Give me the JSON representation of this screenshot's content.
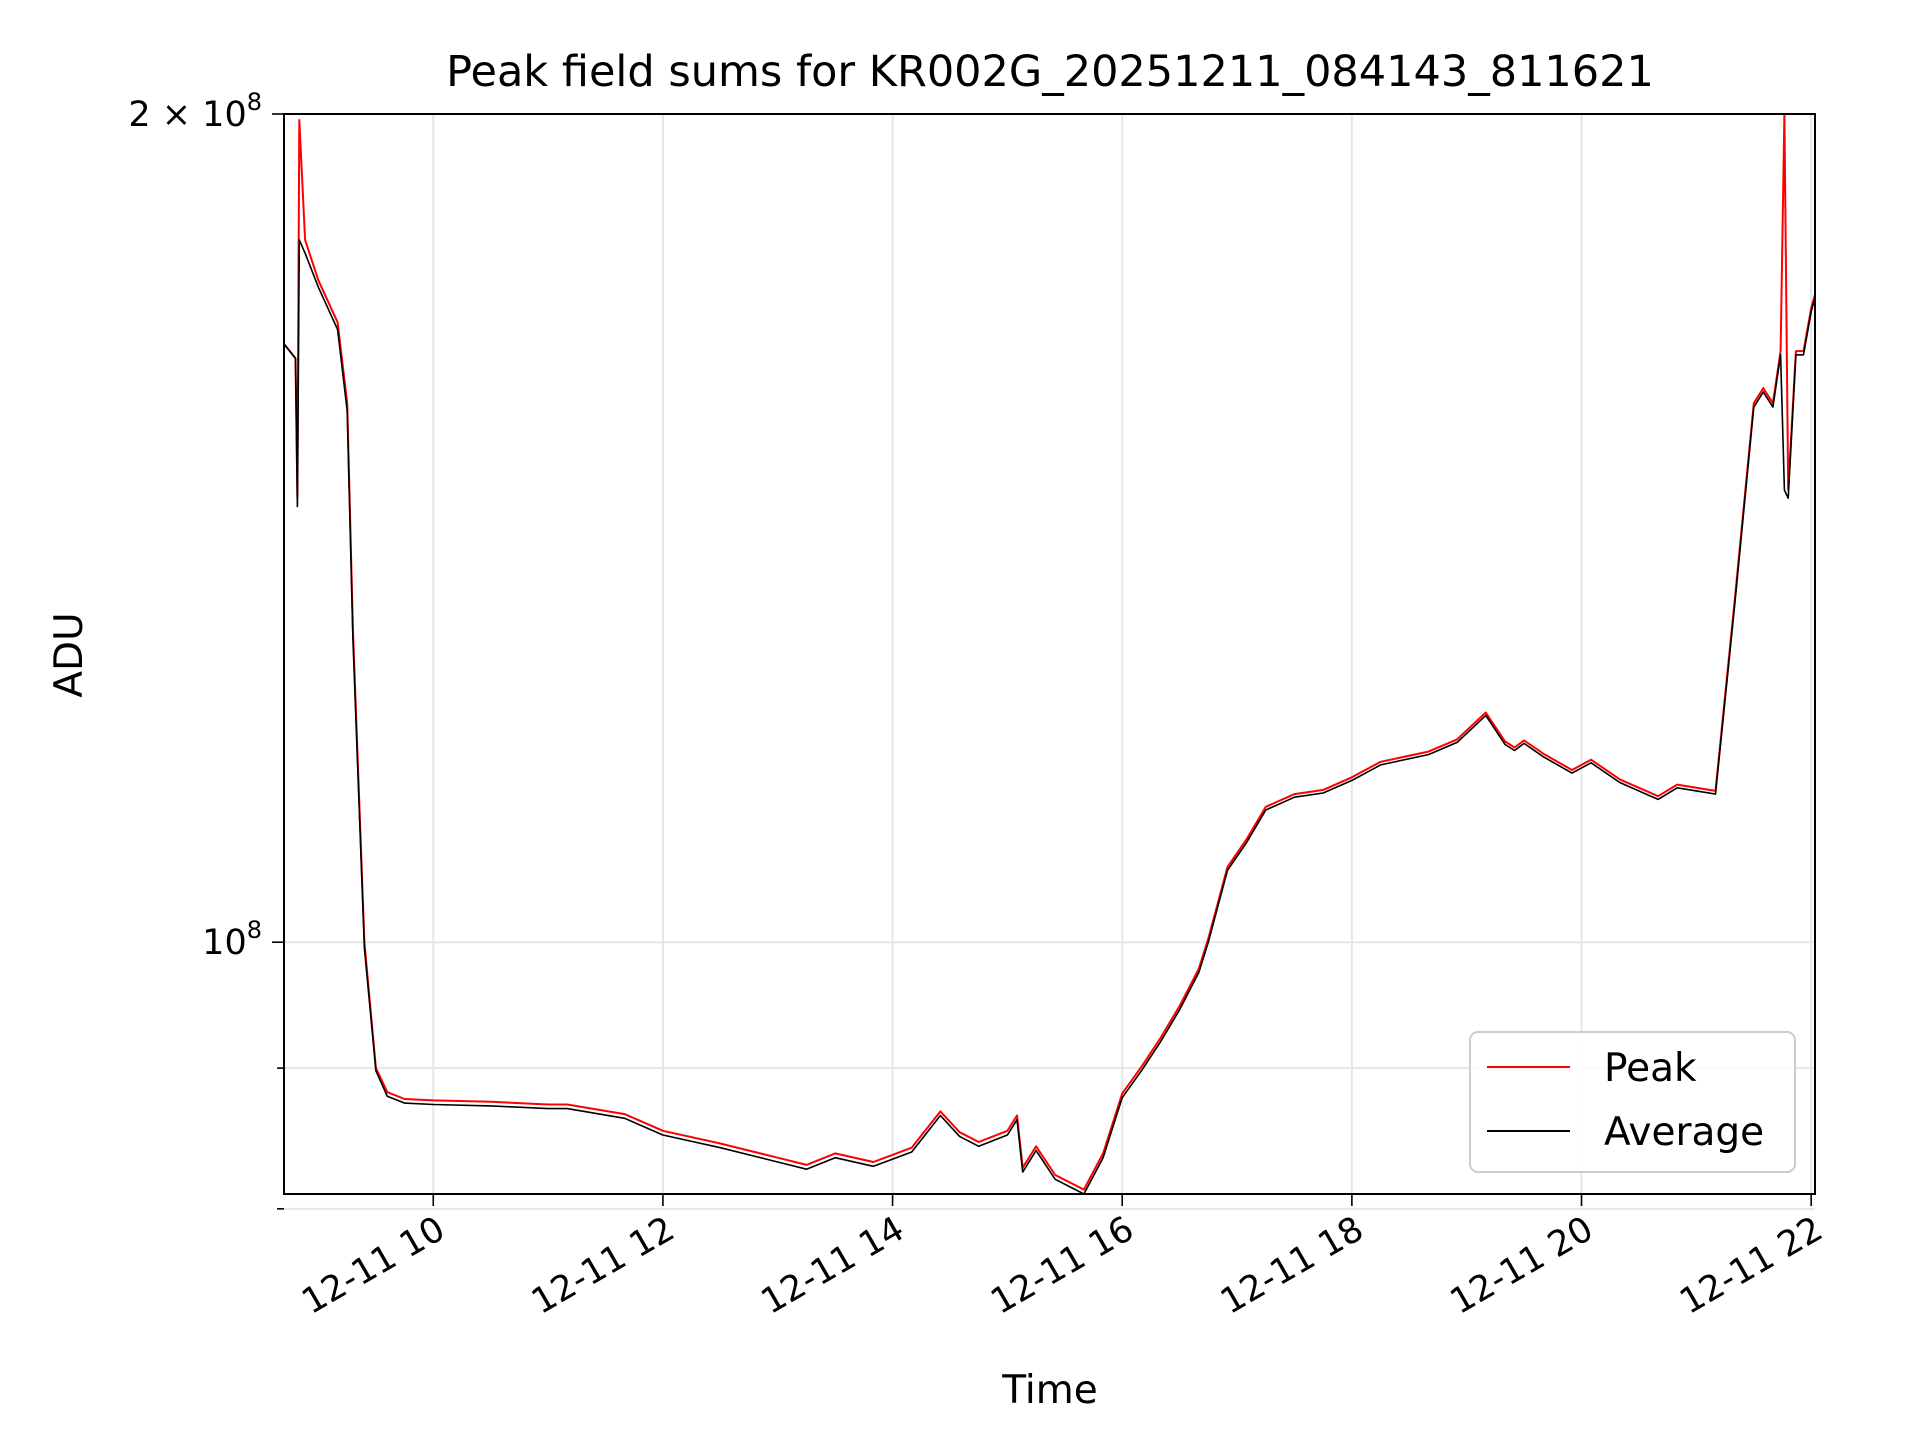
{
  "chart_data": {
    "type": "line",
    "title": "Peak field sums for KR002G_20251211_084143_811621",
    "xlabel": "Time",
    "ylabel": "ADU",
    "yscale": "log",
    "xlim": [
      "2025-12-11 08:42",
      "2025-12-11 22:02"
    ],
    "ylim": [
      81000000,
      200000000
    ],
    "grid": true,
    "legend": "lower-right",
    "x_ticks": [
      {
        "value": "2025-12-11 10:00",
        "label": "12-11 10"
      },
      {
        "value": "2025-12-11 12:00",
        "label": "12-11 12"
      },
      {
        "value": "2025-12-11 14:00",
        "label": "12-11 14"
      },
      {
        "value": "2025-12-11 16:00",
        "label": "12-11 16"
      },
      {
        "value": "2025-12-11 18:00",
        "label": "12-11 18"
      },
      {
        "value": "2025-12-11 20:00",
        "label": "12-11 20"
      },
      {
        "value": "2025-12-11 22:00",
        "label": "12-11 22"
      }
    ],
    "y_ticks": [
      {
        "value": 100000000,
        "base": "10",
        "exp": "8",
        "prefix": ""
      },
      {
        "value": 200000000,
        "base": "10",
        "exp": "8",
        "prefix": "2 × "
      }
    ],
    "y_minor_ticks": [
      90000000,
      80000000
    ],
    "x": [
      "2025-12-11 08:42",
      "2025-12-11 08:48",
      "2025-12-11 08:49",
      "2025-12-11 08:50",
      "2025-12-11 08:53",
      "2025-12-11 09:00",
      "2025-12-11 09:10",
      "2025-12-11 09:15",
      "2025-12-11 09:18",
      "2025-12-11 09:24",
      "2025-12-11 09:30",
      "2025-12-11 09:36",
      "2025-12-11 09:45",
      "2025-12-11 10:00",
      "2025-12-11 10:30",
      "2025-12-11 11:00",
      "2025-12-11 11:10",
      "2025-12-11 11:40",
      "2025-12-11 12:00",
      "2025-12-11 12:30",
      "2025-12-11 13:00",
      "2025-12-11 13:15",
      "2025-12-11 13:30",
      "2025-12-11 13:50",
      "2025-12-11 14:10",
      "2025-12-11 14:25",
      "2025-12-11 14:35",
      "2025-12-11 14:45",
      "2025-12-11 15:00",
      "2025-12-11 15:05",
      "2025-12-11 15:08",
      "2025-12-11 15:15",
      "2025-12-11 15:25",
      "2025-12-11 15:40",
      "2025-12-11 15:50",
      "2025-12-11 16:00",
      "2025-12-11 16:10",
      "2025-12-11 16:20",
      "2025-12-11 16:30",
      "2025-12-11 16:40",
      "2025-12-11 16:45",
      "2025-12-11 16:55",
      "2025-12-11 17:05",
      "2025-12-11 17:15",
      "2025-12-11 17:30",
      "2025-12-11 17:45",
      "2025-12-11 18:00",
      "2025-12-11 18:15",
      "2025-12-11 18:40",
      "2025-12-11 18:55",
      "2025-12-11 19:10",
      "2025-12-11 19:20",
      "2025-12-11 19:25",
      "2025-12-11 19:30",
      "2025-12-11 19:40",
      "2025-12-11 19:55",
      "2025-12-11 20:05",
      "2025-12-11 20:20",
      "2025-12-11 20:40",
      "2025-12-11 20:50",
      "2025-12-11 21:10",
      "2025-12-11 21:20",
      "2025-12-11 21:30",
      "2025-12-11 21:35",
      "2025-12-11 21:40",
      "2025-12-11 21:44",
      "2025-12-11 21:46",
      "2025-12-11 21:48",
      "2025-12-11 21:52",
      "2025-12-11 21:56",
      "2025-12-11 22:00",
      "2025-12-11 22:02"
    ],
    "series": [
      {
        "name": "Peak",
        "color": "#ff0000",
        "values": [
          165000000,
          163000000,
          145000000,
          199000000,
          180000000,
          174000000,
          168000000,
          157000000,
          130000000,
          100000000,
          90000000,
          88200000,
          87700000,
          87600000,
          87500000,
          87300000,
          87300000,
          86600000,
          85400000,
          84500000,
          83500000,
          83000000,
          83800000,
          83200000,
          84200000,
          86800000,
          85300000,
          84600000,
          85400000,
          86500000,
          82800000,
          84300000,
          82300000,
          81300000,
          83800000,
          88100000,
          90100000,
          92300000,
          94800000,
          97800000,
          100300000,
          106500000,
          109000000,
          112000000,
          113200000,
          113600000,
          114800000,
          116300000,
          117300000,
          118500000,
          121200000,
          118300000,
          117700000,
          118400000,
          117100000,
          115500000,
          116500000,
          114600000,
          113000000,
          114100000,
          113500000,
          133000000,
          157000000,
          159000000,
          157000000,
          164000000,
          200000000,
          146000000,
          164000000,
          164000000,
          170000000,
          172000000
        ]
      },
      {
        "name": "Average",
        "color": "#000000",
        "values": [
          165000000,
          163000000,
          144000000,
          180000000,
          178000000,
          173000000,
          167000000,
          156000000,
          129000000,
          99500000,
          89800000,
          87900000,
          87400000,
          87300000,
          87200000,
          87000000,
          87000000,
          86300000,
          85100000,
          84200000,
          83200000,
          82700000,
          83500000,
          82900000,
          83900000,
          86500000,
          85000000,
          84300000,
          85100000,
          86200000,
          82500000,
          84000000,
          82000000,
          81000000,
          83500000,
          87800000,
          89800000,
          92000000,
          94500000,
          97500000,
          100000000,
          106200000,
          108700000,
          111700000,
          112900000,
          113300000,
          114500000,
          116000000,
          117000000,
          118200000,
          120900000,
          118000000,
          117400000,
          118100000,
          116800000,
          115200000,
          116200000,
          114300000,
          112700000,
          113800000,
          113200000,
          132500000,
          156500000,
          158500000,
          156500000,
          163500000,
          146000000,
          145000000,
          163500000,
          163500000,
          169500000,
          171500000
        ]
      }
    ]
  }
}
